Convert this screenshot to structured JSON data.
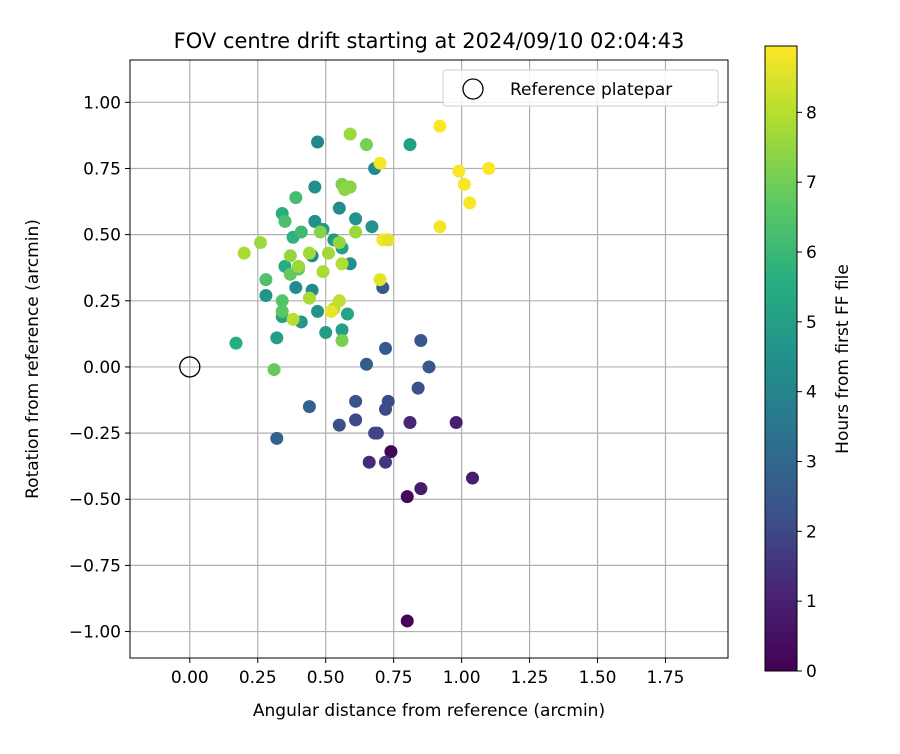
{
  "chart_data": {
    "type": "scatter",
    "title": "FOV centre drift starting at 2024/09/10 02:04:43",
    "xlabel": "Angular distance from reference (arcmin)",
    "ylabel": "Rotation from reference (arcmin)",
    "xlim": [
      -0.22,
      1.98
    ],
    "ylim": [
      -1.1,
      1.16
    ],
    "xticks": [
      0.0,
      0.25,
      0.5,
      0.75,
      1.0,
      1.25,
      1.5,
      1.75
    ],
    "xtick_labels": [
      "0.00",
      "0.25",
      "0.50",
      "0.75",
      "1.00",
      "1.25",
      "1.50",
      "1.75"
    ],
    "yticks": [
      1.0,
      0.75,
      0.5,
      0.25,
      0.0,
      -0.25,
      -0.5,
      -0.75,
      -1.0
    ],
    "ytick_labels": [
      "1.00",
      "0.75",
      "0.50",
      "0.25",
      "0.00",
      "−0.25",
      "−0.50",
      "−0.75",
      "−1.00"
    ],
    "grid": true,
    "legend": {
      "placement": "top-right",
      "entries": [
        {
          "label": "Reference platepar",
          "marker": "open-circle"
        }
      ]
    },
    "reference_point": {
      "x": 0.0,
      "y": 0.0
    },
    "colorbar": {
      "label": "Hours from first FF file",
      "range": [
        0,
        8.95
      ],
      "ticks": [
        0,
        1,
        2,
        3,
        4,
        5,
        6,
        7,
        8
      ],
      "colormap": "viridis"
    },
    "series": [
      {
        "points": [
          {
            "x": 0.8,
            "y": -0.96,
            "c": 0.1
          },
          {
            "x": 0.8,
            "y": -0.49,
            "c": 0.2
          },
          {
            "x": 0.74,
            "y": -0.32,
            "c": 0.2
          },
          {
            "x": 0.85,
            "y": -0.46,
            "c": 0.8
          },
          {
            "x": 1.04,
            "y": -0.42,
            "c": 0.9
          },
          {
            "x": 0.98,
            "y": -0.21,
            "c": 1.0
          },
          {
            "x": 0.81,
            "y": -0.21,
            "c": 1.2
          },
          {
            "x": 0.66,
            "y": -0.36,
            "c": 1.3
          },
          {
            "x": 0.72,
            "y": -0.36,
            "c": 1.6
          },
          {
            "x": 0.69,
            "y": -0.25,
            "c": 1.8
          },
          {
            "x": 0.68,
            "y": -0.25,
            "c": 1.9
          },
          {
            "x": 0.61,
            "y": -0.2,
            "c": 2.0
          },
          {
            "x": 0.72,
            "y": -0.16,
            "c": 2.1
          },
          {
            "x": 0.73,
            "y": -0.13,
            "c": 2.1
          },
          {
            "x": 0.84,
            "y": -0.08,
            "c": 2.2
          },
          {
            "x": 0.55,
            "y": -0.22,
            "c": 2.2
          },
          {
            "x": 0.61,
            "y": -0.13,
            "c": 2.3
          },
          {
            "x": 0.88,
            "y": 0.0,
            "c": 2.4
          },
          {
            "x": 0.85,
            "y": 0.1,
            "c": 2.4
          },
          {
            "x": 0.72,
            "y": 0.07,
            "c": 2.5
          },
          {
            "x": 0.65,
            "y": 0.01,
            "c": 2.6
          },
          {
            "x": 0.44,
            "y": -0.15,
            "c": 2.7
          },
          {
            "x": 0.32,
            "y": -0.27,
            "c": 2.8
          },
          {
            "x": 0.71,
            "y": 0.3,
            "c": 2.5
          },
          {
            "x": 0.47,
            "y": 0.85,
            "c": 4.1
          },
          {
            "x": 0.81,
            "y": 0.84,
            "c": 5.0
          },
          {
            "x": 0.68,
            "y": 0.75,
            "c": 4.2
          },
          {
            "x": 0.46,
            "y": 0.68,
            "c": 4.4
          },
          {
            "x": 0.55,
            "y": 0.6,
            "c": 4.3
          },
          {
            "x": 0.61,
            "y": 0.56,
            "c": 4.5
          },
          {
            "x": 0.67,
            "y": 0.53,
            "c": 4.6
          },
          {
            "x": 0.46,
            "y": 0.55,
            "c": 4.5
          },
          {
            "x": 0.49,
            "y": 0.52,
            "c": 4.7
          },
          {
            "x": 0.53,
            "y": 0.48,
            "c": 4.8
          },
          {
            "x": 0.56,
            "y": 0.45,
            "c": 5.0
          },
          {
            "x": 0.59,
            "y": 0.39,
            "c": 4.4
          },
          {
            "x": 0.45,
            "y": 0.42,
            "c": 4.2
          },
          {
            "x": 0.45,
            "y": 0.29,
            "c": 4.2
          },
          {
            "x": 0.39,
            "y": 0.3,
            "c": 4.3
          },
          {
            "x": 0.47,
            "y": 0.21,
            "c": 4.6
          },
          {
            "x": 0.41,
            "y": 0.17,
            "c": 4.7
          },
          {
            "x": 0.5,
            "y": 0.13,
            "c": 4.9
          },
          {
            "x": 0.56,
            "y": 0.14,
            "c": 5.0
          },
          {
            "x": 0.58,
            "y": 0.2,
            "c": 5.2
          },
          {
            "x": 0.28,
            "y": 0.27,
            "c": 4.6
          },
          {
            "x": 0.32,
            "y": 0.11,
            "c": 4.9
          },
          {
            "x": 0.17,
            "y": 0.09,
            "c": 5.5
          },
          {
            "x": 0.34,
            "y": 0.19,
            "c": 5.1
          },
          {
            "x": 0.34,
            "y": 0.58,
            "c": 5.6
          },
          {
            "x": 0.35,
            "y": 0.38,
            "c": 5.5
          },
          {
            "x": 0.38,
            "y": 0.49,
            "c": 5.7
          },
          {
            "x": 0.41,
            "y": 0.51,
            "c": 6.1
          },
          {
            "x": 0.39,
            "y": 0.64,
            "c": 6.2
          },
          {
            "x": 0.35,
            "y": 0.55,
            "c": 6.3
          },
          {
            "x": 0.28,
            "y": 0.33,
            "c": 6.4
          },
          {
            "x": 0.34,
            "y": 0.25,
            "c": 6.5
          },
          {
            "x": 0.34,
            "y": 0.21,
            "c": 6.6
          },
          {
            "x": 0.4,
            "y": 0.37,
            "c": 6.6
          },
          {
            "x": 0.37,
            "y": 0.35,
            "c": 6.8
          },
          {
            "x": 0.31,
            "y": -0.01,
            "c": 6.8
          },
          {
            "x": 0.56,
            "y": 0.1,
            "c": 7.1
          },
          {
            "x": 0.65,
            "y": 0.84,
            "c": 7.1
          },
          {
            "x": 0.59,
            "y": 0.88,
            "c": 7.6
          },
          {
            "x": 0.56,
            "y": 0.69,
            "c": 7.2
          },
          {
            "x": 0.59,
            "y": 0.68,
            "c": 7.3
          },
          {
            "x": 0.57,
            "y": 0.67,
            "c": 7.4
          },
          {
            "x": 0.48,
            "y": 0.51,
            "c": 7.3
          },
          {
            "x": 0.55,
            "y": 0.47,
            "c": 7.5
          },
          {
            "x": 0.61,
            "y": 0.51,
            "c": 7.6
          },
          {
            "x": 0.26,
            "y": 0.47,
            "c": 7.6
          },
          {
            "x": 0.2,
            "y": 0.43,
            "c": 7.8
          },
          {
            "x": 0.37,
            "y": 0.42,
            "c": 7.5
          },
          {
            "x": 0.4,
            "y": 0.38,
            "c": 7.6
          },
          {
            "x": 0.44,
            "y": 0.43,
            "c": 7.7
          },
          {
            "x": 0.51,
            "y": 0.43,
            "c": 7.7
          },
          {
            "x": 0.49,
            "y": 0.36,
            "c": 7.8
          },
          {
            "x": 0.56,
            "y": 0.39,
            "c": 7.9
          },
          {
            "x": 0.44,
            "y": 0.26,
            "c": 7.8
          },
          {
            "x": 0.53,
            "y": 0.22,
            "c": 8.0
          },
          {
            "x": 0.55,
            "y": 0.25,
            "c": 8.1
          },
          {
            "x": 0.38,
            "y": 0.18,
            "c": 8.0
          },
          {
            "x": 0.52,
            "y": 0.21,
            "c": 8.7
          },
          {
            "x": 0.7,
            "y": 0.33,
            "c": 8.6
          },
          {
            "x": 0.7,
            "y": 0.77,
            "c": 8.8
          },
          {
            "x": 0.71,
            "y": 0.48,
            "c": 8.8
          },
          {
            "x": 0.73,
            "y": 0.48,
            "c": 8.6
          },
          {
            "x": 0.92,
            "y": 0.91,
            "c": 8.9
          },
          {
            "x": 0.92,
            "y": 0.53,
            "c": 8.8
          },
          {
            "x": 0.99,
            "y": 0.74,
            "c": 8.9
          },
          {
            "x": 1.01,
            "y": 0.69,
            "c": 8.9
          },
          {
            "x": 1.03,
            "y": 0.62,
            "c": 8.9
          },
          {
            "x": 1.1,
            "y": 0.75,
            "c": 8.9
          }
        ]
      }
    ]
  }
}
